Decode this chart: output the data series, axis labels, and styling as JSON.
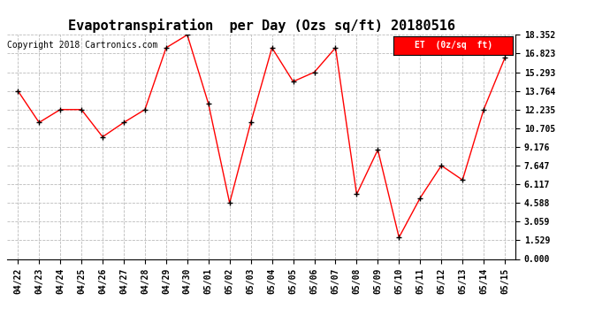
{
  "title": "Evapotranspiration  per Day (Ozs sq/ft) 20180516",
  "copyright": "Copyright 2018 Cartronics.com",
  "legend_label": "ET  (0z/sq  ft)",
  "dates": [
    "04/22",
    "04/23",
    "04/24",
    "04/25",
    "04/26",
    "04/27",
    "04/28",
    "04/29",
    "04/30",
    "05/01",
    "05/02",
    "05/03",
    "05/04",
    "05/05",
    "05/06",
    "05/07",
    "05/08",
    "05/09",
    "05/10",
    "05/11",
    "05/12",
    "05/13",
    "05/14",
    "05/15"
  ],
  "values": [
    13.764,
    11.176,
    12.235,
    12.235,
    10.0,
    11.176,
    12.235,
    17.294,
    18.352,
    12.706,
    4.588,
    11.176,
    17.294,
    14.529,
    15.293,
    17.294,
    5.294,
    8.941,
    1.764,
    5.0,
    7.647,
    6.47,
    12.235,
    16.47
  ],
  "yticks": [
    0.0,
    1.529,
    3.059,
    4.588,
    6.117,
    7.647,
    9.176,
    10.705,
    12.235,
    13.764,
    15.293,
    16.823,
    18.352
  ],
  "ylim": [
    0.0,
    18.352
  ],
  "line_color": "#FF0000",
  "marker_color": "#000000",
  "bg_color": "#FFFFFF",
  "grid_color": "#BBBBBB",
  "title_fontsize": 11,
  "copyright_fontsize": 7,
  "legend_bg": "#FF0000",
  "legend_text_color": "#FFFFFF"
}
